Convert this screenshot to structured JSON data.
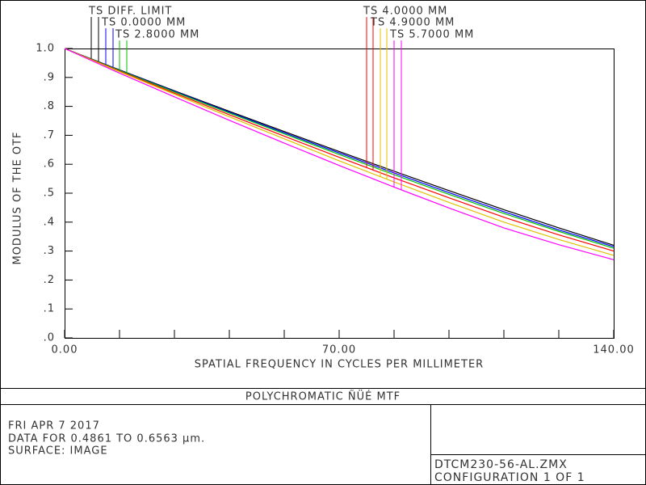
{
  "chart_data": {
    "type": "line",
    "title": "POLYCHROMATIC ÑÜÉ  MTF",
    "xlabel": "SPATIAL FREQUENCY IN CYCLES PER MILLIMETER",
    "ylabel": "MODULUS OF THE OTF",
    "x": [
      0,
      14,
      28,
      42,
      56,
      70,
      84,
      98,
      112,
      126,
      140
    ],
    "series": [
      {
        "name": "TS DIFF. LIMIT",
        "color": "#000000",
        "values": [
          1,
          0.926,
          0.854,
          0.783,
          0.713,
          0.644,
          0.576,
          0.509,
          0.443,
          0.38,
          0.32
        ]
      },
      {
        "name": "TS 0.0000 MM",
        "color": "#0000ff",
        "values": [
          1,
          0.925,
          0.852,
          0.78,
          0.709,
          0.639,
          0.57,
          0.502,
          0.436,
          0.373,
          0.315
        ]
      },
      {
        "name": "TS 2.8000 MM",
        "color": "#00c000",
        "values": [
          1,
          0.924,
          0.85,
          0.777,
          0.705,
          0.634,
          0.564,
          0.496,
          0.43,
          0.368,
          0.31
        ]
      },
      {
        "name": "TS 4.0000 MM",
        "color": "#ff0000",
        "values": [
          1,
          0.922,
          0.846,
          0.771,
          0.697,
          0.624,
          0.553,
          0.484,
          0.417,
          0.356,
          0.3
        ]
      },
      {
        "name": "TS 4.9000 MM",
        "color": "#e0c000",
        "values": [
          1,
          0.92,
          0.842,
          0.764,
          0.688,
          0.612,
          0.539,
          0.468,
          0.4,
          0.34,
          0.285
        ]
      },
      {
        "name": "TS 5.7000 MM",
        "color": "#ff00ff",
        "values": [
          1,
          0.915,
          0.833,
          0.752,
          0.673,
          0.596,
          0.521,
          0.449,
          0.38,
          0.322,
          0.27
        ]
      }
    ],
    "xlim": [
      0,
      140
    ],
    "xticks": [
      {
        "value": 0,
        "label": "0.00"
      },
      {
        "value": 70,
        "label": "70.00"
      },
      {
        "value": 140,
        "label": "140.00"
      }
    ],
    "xminorticks": [
      14,
      28,
      42,
      56,
      84,
      98,
      112,
      126
    ],
    "ylim": [
      0,
      1
    ],
    "yticks": [
      {
        "value": 0,
        "label": ".0"
      },
      {
        "value": 0.1,
        "label": ".1"
      },
      {
        "value": 0.2,
        "label": ".2"
      },
      {
        "value": 0.3,
        "label": ".3"
      },
      {
        "value": 0.4,
        "label": ".4"
      },
      {
        "value": 0.5,
        "label": ".5"
      },
      {
        "value": 0.6,
        "label": ".6"
      },
      {
        "value": 0.7,
        "label": ".7"
      },
      {
        "value": 0.8,
        "label": ".8"
      },
      {
        "value": 0.9,
        "label": ".9"
      },
      {
        "value": 1,
        "label": "1.0"
      }
    ]
  },
  "footer": {
    "info": [
      "FRI APR 7 2017",
      "DATA FOR 0.4861 TO 0.6563 µm.",
      "SURFACE: IMAGE"
    ],
    "file": "DTCM230-56-AL.ZMX",
    "configuration": "CONFIGURATION 1 OF 1"
  }
}
